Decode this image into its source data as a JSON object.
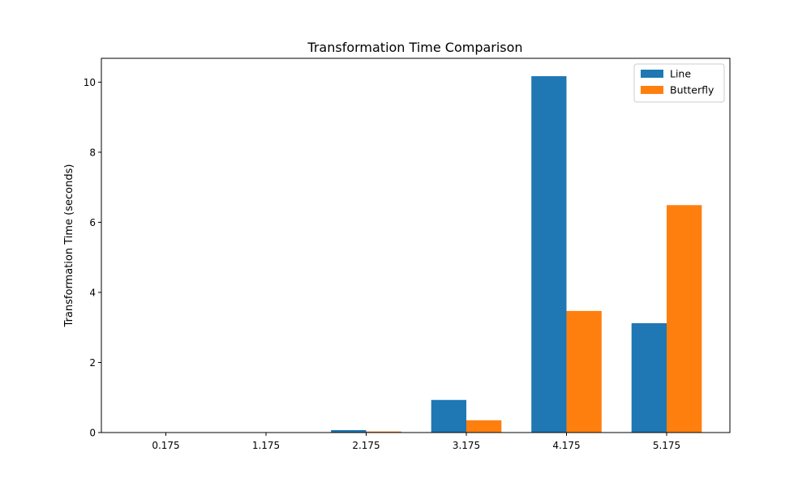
{
  "chart_data": {
    "type": "bar",
    "title": "Transformation Time Comparison",
    "xlabel": "",
    "ylabel": "Transformation Time (seconds)",
    "categories": [
      "0.175",
      "1.175",
      "2.175",
      "3.175",
      "4.175",
      "5.175"
    ],
    "series": [
      {
        "name": "Line",
        "color": "#1f77b4",
        "values": [
          0.001,
          0.004,
          0.07,
          0.93,
          10.17,
          3.12
        ]
      },
      {
        "name": "Butterfly",
        "color": "#ff7f0e",
        "values": [
          0.001,
          0.002,
          0.03,
          0.35,
          3.47,
          6.49
        ]
      }
    ],
    "ylim": [
      0,
      10.68
    ],
    "yticks": [
      0,
      2,
      4,
      6,
      8,
      10
    ],
    "grid": false,
    "legend_position": "top-right"
  }
}
